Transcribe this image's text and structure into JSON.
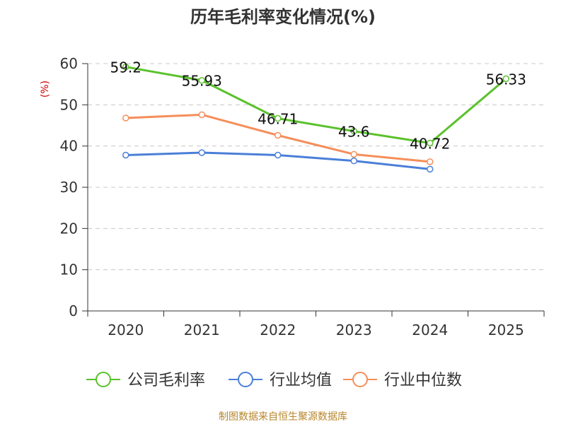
{
  "colors": {
    "company": "#5ac12b",
    "industry_avg": "#4a7fd8",
    "industry_median": "#f58e5a",
    "grid": "#c8c8c8",
    "axis": "#333333"
  },
  "chart_data": {
    "type": "line",
    "title": "历年毛利率变化情况(%)",
    "ylabel": "(%)",
    "xlabel": "",
    "categories": [
      "2020",
      "2021",
      "2022",
      "2023",
      "2024",
      "2025"
    ],
    "ylim": [
      0,
      60
    ],
    "yticks": [
      "0",
      "10",
      "20",
      "30",
      "40",
      "50",
      "60"
    ],
    "grid": true,
    "legend_position": "bottom",
    "series": [
      {
        "key": "company",
        "name": "公司毛利率",
        "values": [
          59.2,
          55.93,
          46.71,
          43.6,
          40.72,
          56.33
        ],
        "labels": [
          "59.2",
          "55.93",
          "46.71",
          "43.6",
          "40.72",
          "56.33"
        ]
      },
      {
        "key": "industry_avg",
        "name": "行业均值",
        "values": [
          37.8,
          38.4,
          37.8,
          36.4,
          34.4,
          null
        ]
      },
      {
        "key": "industry_median",
        "name": "行业中位数",
        "values": [
          46.8,
          47.6,
          42.6,
          38.0,
          36.2,
          null
        ]
      }
    ]
  },
  "footer": {
    "source": "制图数据来自恒生聚源数据库"
  }
}
